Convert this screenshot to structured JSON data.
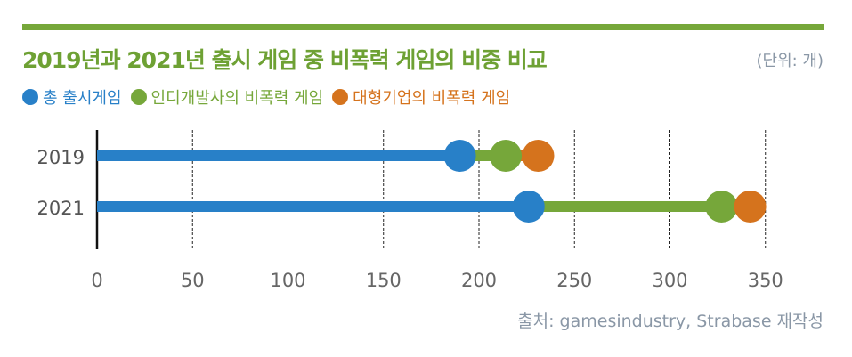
{
  "chart_data": {
    "type": "dot-range",
    "title": "2019년과 2021년 출시 게임 중 비폭력 게임의 비중 비교",
    "unit": "(단위: 개)",
    "source": "출처: gamesindustry, Strabase 재작성",
    "categories": [
      "2019",
      "2021"
    ],
    "series": [
      {
        "name": "총 출시게임",
        "color": "#2880c8",
        "values": [
          190,
          226
        ]
      },
      {
        "name": "인디개발사의 비폭력 게임",
        "color": "#76a73a",
        "values": [
          214,
          327
        ]
      },
      {
        "name": "대형기업의 비폭력 게임",
        "color": "#d5731d",
        "values": [
          231,
          342
        ]
      }
    ],
    "xticks": [
      "0",
      "50",
      "100",
      "150",
      "200",
      "250",
      "300",
      "350"
    ],
    "xlim": [
      0,
      350
    ],
    "grid": "vertical dashed",
    "legend": "top-left"
  }
}
